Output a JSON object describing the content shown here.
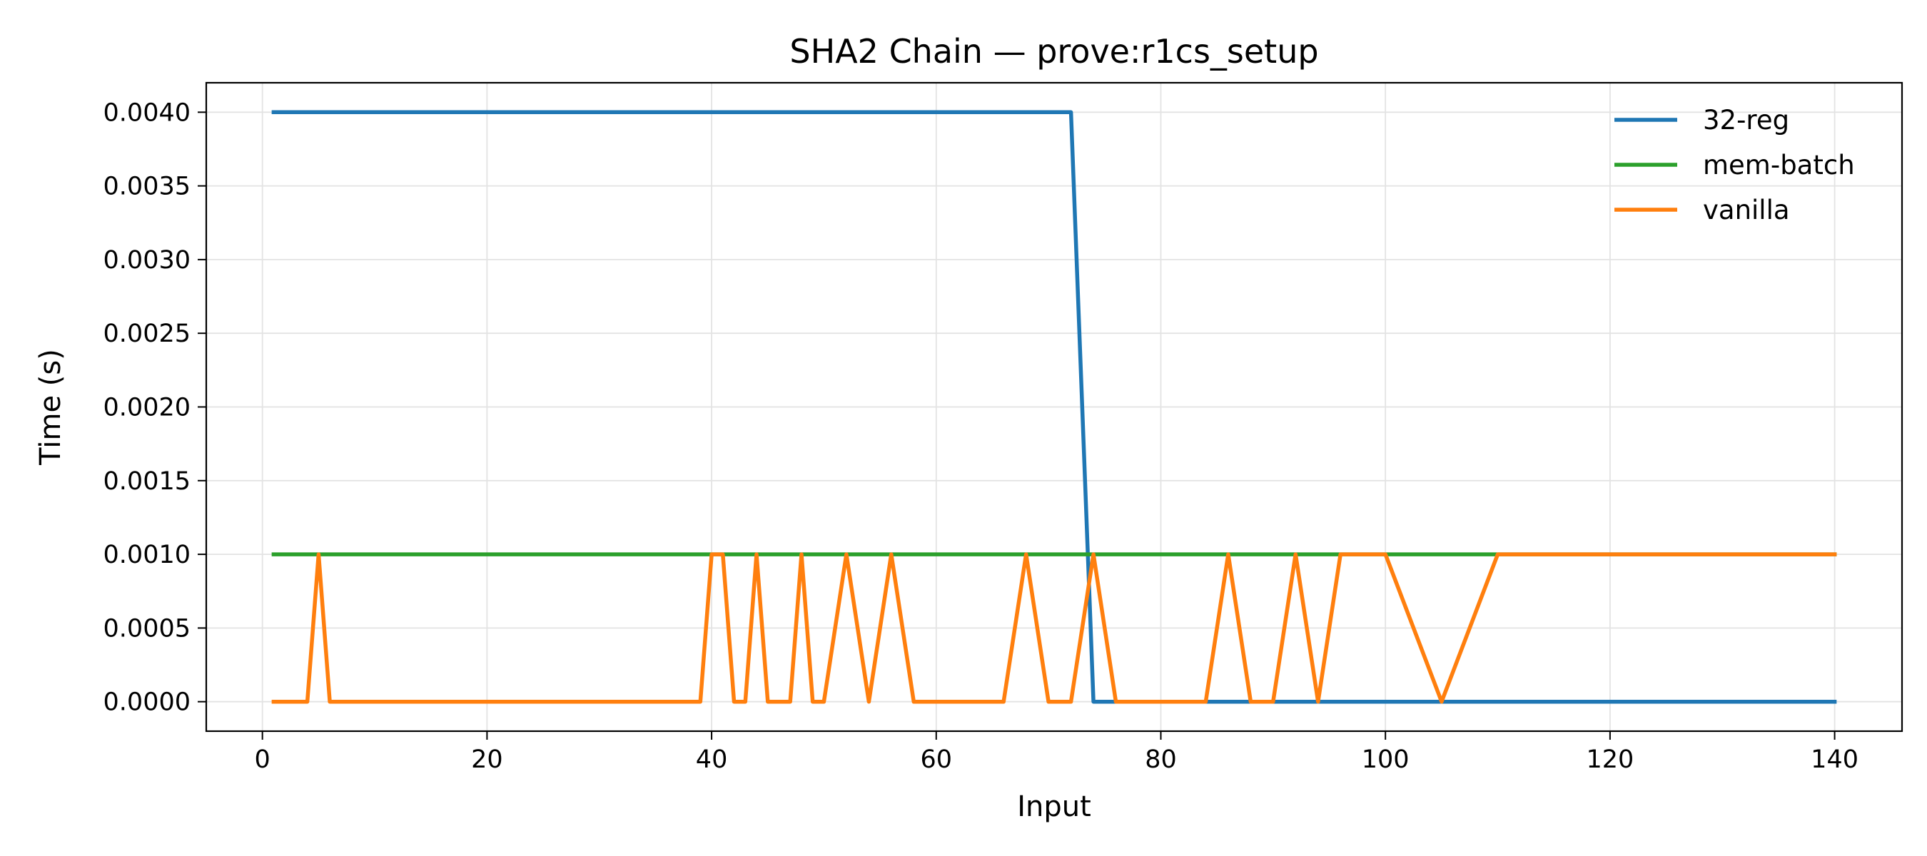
{
  "chart_data": {
    "type": "line",
    "title": "SHA2 Chain — prove:r1cs_setup",
    "xlabel": "Input",
    "ylabel": "Time (s)",
    "xlim": [
      -5,
      146
    ],
    "ylim": [
      -0.0002,
      0.0042
    ],
    "xticks": [
      0,
      20,
      40,
      60,
      80,
      100,
      120,
      140
    ],
    "xtick_labels": [
      "0",
      "20",
      "40",
      "60",
      "80",
      "100",
      "120",
      "140"
    ],
    "yticks": [
      0,
      0.0005,
      0.001,
      0.0015,
      0.002,
      0.0025,
      0.003,
      0.0035,
      0.004
    ],
    "ytick_labels": [
      "0.0000",
      "0.0005",
      "0.0010",
      "0.0015",
      "0.0020",
      "0.0025",
      "0.0030",
      "0.0035",
      "0.0040"
    ],
    "grid": true,
    "legend_position": "top-right",
    "series": [
      {
        "name": "32-reg",
        "color": "#1f77b4",
        "x": [
          1,
          72,
          74,
          140
        ],
        "y": [
          0.004,
          0.004,
          0.0,
          0.0
        ]
      },
      {
        "name": "mem-batch",
        "color": "#2ca02c",
        "x": [
          1,
          140
        ],
        "y": [
          0.001,
          0.001
        ]
      },
      {
        "name": "vanilla",
        "color": "#ff7f0e",
        "x": [
          1,
          4,
          5,
          6,
          39,
          40,
          41,
          42,
          43,
          44,
          45,
          47,
          48,
          49,
          50,
          52,
          54,
          56,
          58,
          66,
          68,
          70,
          72,
          74,
          76,
          84,
          86,
          88,
          90,
          92,
          94,
          96,
          100,
          105,
          110,
          140
        ],
        "y": [
          0,
          0,
          0.001,
          0,
          0,
          0.001,
          0.001,
          0,
          0,
          0.001,
          0,
          0,
          0.001,
          0,
          0,
          0.001,
          0,
          0.001,
          0,
          0,
          0.001,
          0,
          0,
          0.001,
          0,
          0,
          0.001,
          0,
          0,
          0.001,
          0,
          0.001,
          0.001,
          0,
          0.001,
          0.001
        ]
      }
    ]
  }
}
